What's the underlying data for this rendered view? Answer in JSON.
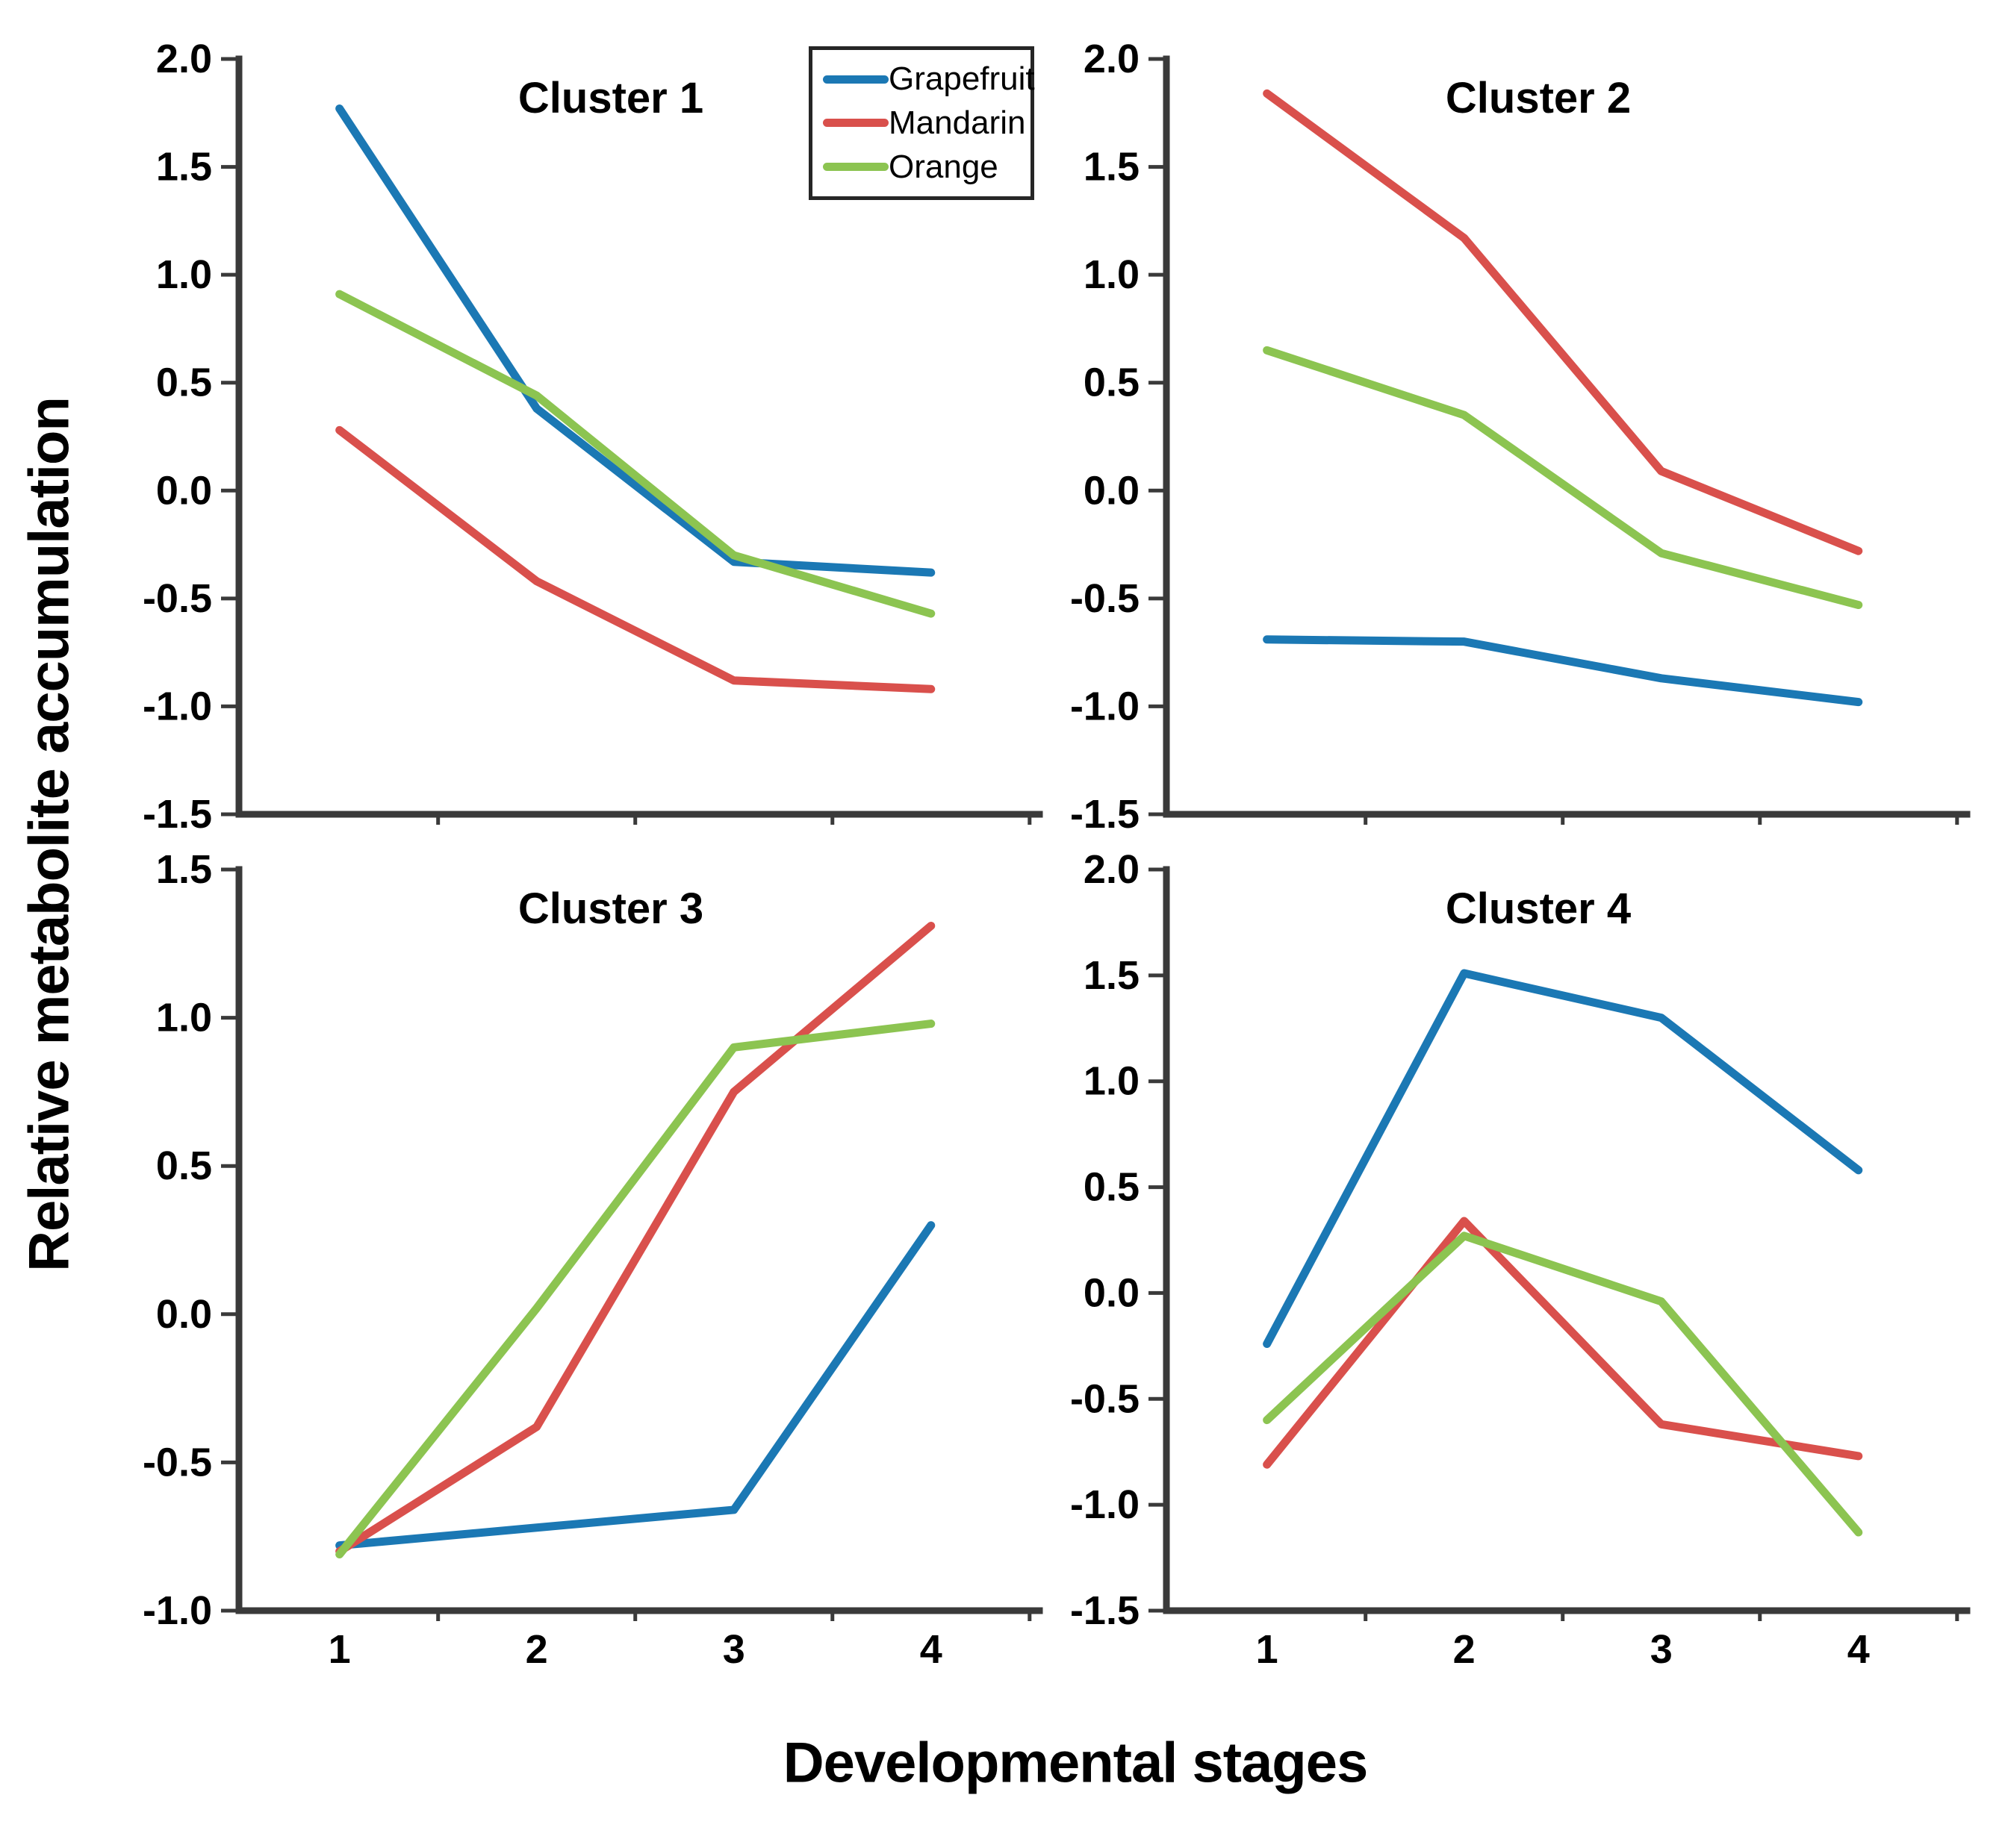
{
  "figure": {
    "y_axis_title": "Relative metabolite accumulation",
    "x_axis_title": "Developmental stages"
  },
  "legend": {
    "items": [
      {
        "label": "Grapefruit",
        "color": "#1B78B4"
      },
      {
        "label": "Mandarin",
        "color": "#D9504C"
      },
      {
        "label": "Orange",
        "color": "#8CC451"
      }
    ]
  },
  "colors": {
    "axis": "#3A3A3A",
    "text": "#000000",
    "background": "#FFFFFF"
  },
  "chart_data": [
    {
      "type": "line",
      "title": "Cluster 1",
      "x": [
        1,
        2,
        3,
        4
      ],
      "x_tick_mark_positions": [
        1.5,
        2.5,
        3.5,
        4.5
      ],
      "xlim": [
        0.49,
        4.55
      ],
      "ylim": [
        -1.5,
        2.0
      ],
      "yticks": [
        2.0,
        1.5,
        1.0,
        0.5,
        0.0,
        -0.5,
        -1.0,
        -1.5
      ],
      "show_x_tick_labels": false,
      "grid": false,
      "series": [
        {
          "name": "Grapefruit",
          "values": [
            1.77,
            0.38,
            -0.33,
            -0.38
          ]
        },
        {
          "name": "Mandarin",
          "values": [
            0.28,
            -0.42,
            -0.88,
            -0.92
          ]
        },
        {
          "name": "Orange",
          "values": [
            0.91,
            0.44,
            -0.3,
            -0.57
          ]
        }
      ]
    },
    {
      "type": "line",
      "title": "Cluster 2",
      "x": [
        1,
        2,
        3,
        4
      ],
      "x_tick_mark_positions": [
        1.5,
        2.5,
        3.5,
        4.5
      ],
      "xlim": [
        0.49,
        4.55
      ],
      "ylim": [
        -1.5,
        2.0
      ],
      "yticks": [
        2.0,
        1.5,
        1.0,
        0.5,
        0.0,
        -0.5,
        -1.0,
        -1.5
      ],
      "show_x_tick_labels": false,
      "grid": false,
      "series": [
        {
          "name": "Grapefruit",
          "values": [
            -0.69,
            -0.7,
            -0.87,
            -0.98
          ]
        },
        {
          "name": "Mandarin",
          "values": [
            1.84,
            1.17,
            0.09,
            -0.28
          ]
        },
        {
          "name": "Orange",
          "values": [
            0.65,
            0.35,
            -0.29,
            -0.53
          ]
        }
      ]
    },
    {
      "type": "line",
      "title": "Cluster 3",
      "x": [
        1,
        2,
        3,
        4
      ],
      "x_tick_mark_positions": [
        1.5,
        2.5,
        3.5,
        4.5
      ],
      "xlim": [
        0.49,
        4.55
      ],
      "ylim": [
        -1.0,
        1.5
      ],
      "yticks": [
        1.5,
        1.0,
        0.5,
        0.0,
        -0.5,
        -1.0
      ],
      "show_x_tick_labels": true,
      "grid": false,
      "series": [
        {
          "name": "Grapefruit",
          "values": [
            -0.78,
            -0.72,
            -0.66,
            0.3
          ]
        },
        {
          "name": "Mandarin",
          "values": [
            -0.8,
            -0.38,
            0.75,
            1.31
          ]
        },
        {
          "name": "Orange",
          "values": [
            -0.81,
            0.02,
            0.9,
            0.98
          ]
        }
      ]
    },
    {
      "type": "line",
      "title": "Cluster 4",
      "x": [
        1,
        2,
        3,
        4
      ],
      "x_tick_mark_positions": [
        1.5,
        2.5,
        3.5,
        4.5
      ],
      "xlim": [
        0.49,
        4.55
      ],
      "ylim": [
        -1.5,
        2.0
      ],
      "yticks": [
        2.0,
        1.5,
        1.0,
        0.5,
        0.0,
        -0.5,
        -1.0,
        -1.5
      ],
      "show_x_tick_labels": true,
      "grid": false,
      "series": [
        {
          "name": "Grapefruit",
          "values": [
            -0.24,
            1.51,
            1.3,
            0.58
          ]
        },
        {
          "name": "Mandarin",
          "values": [
            -0.81,
            0.34,
            -0.62,
            -0.77
          ]
        },
        {
          "name": "Orange",
          "values": [
            -0.6,
            0.27,
            -0.04,
            -1.13
          ]
        }
      ]
    }
  ]
}
